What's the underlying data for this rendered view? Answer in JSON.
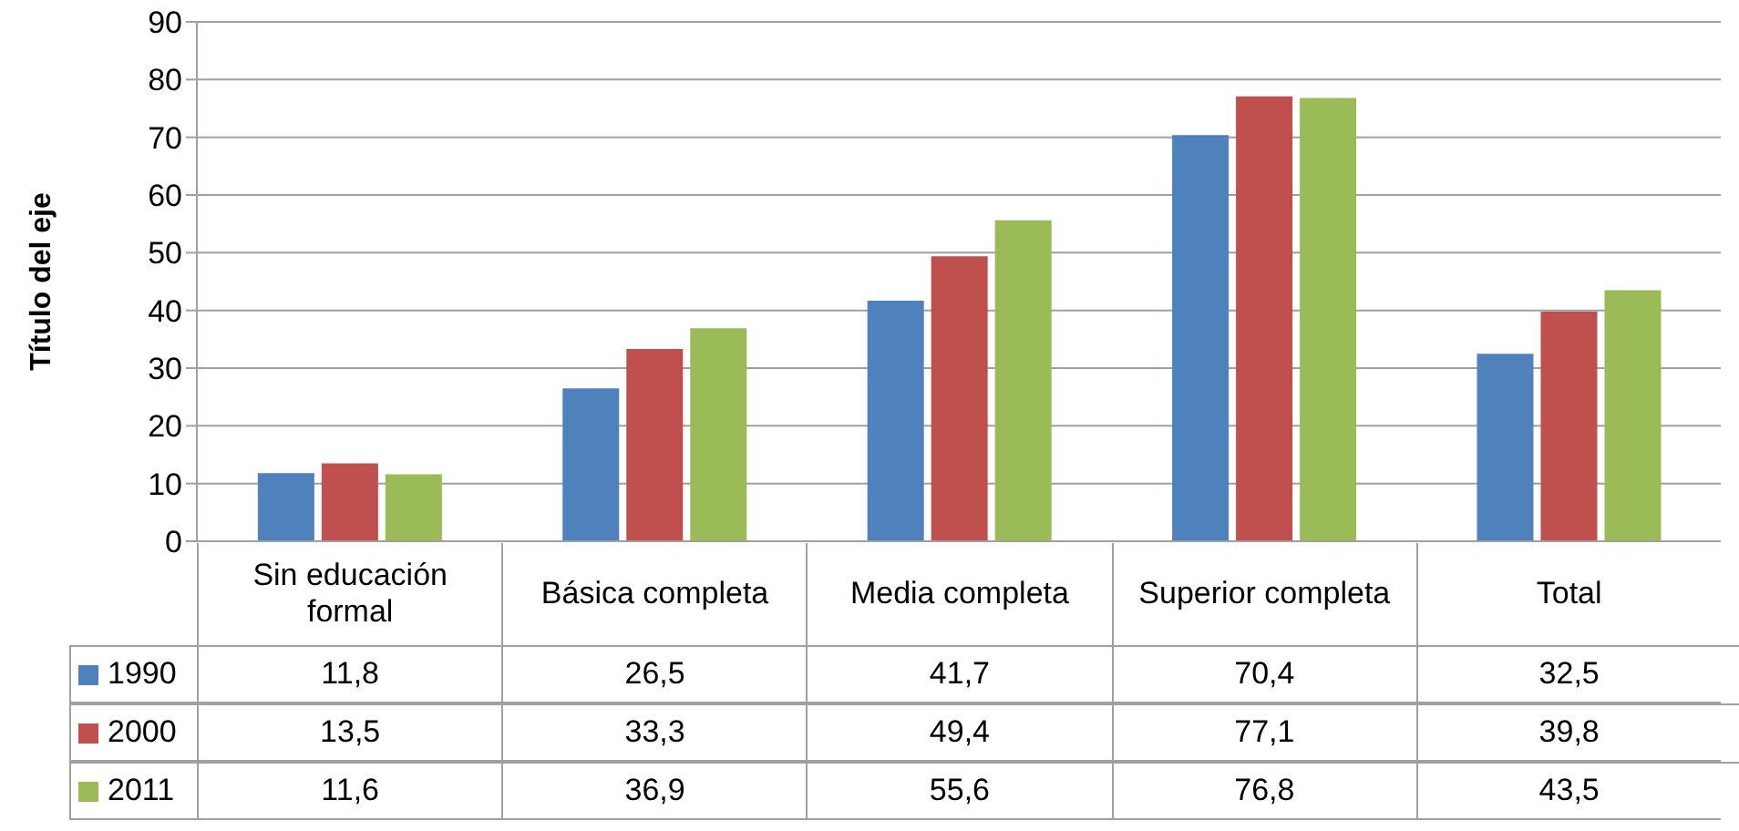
{
  "chart_data": {
    "type": "bar",
    "ylabel": "Título del eje",
    "categories": [
      "Sin educación formal",
      "Básica completa",
      "Media completa",
      "Superior completa",
      "Total"
    ],
    "series": [
      {
        "name": "1990",
        "color": "#4f81bd",
        "values": [
          11.8,
          26.5,
          41.7,
          70.4,
          32.5
        ],
        "value_labels": [
          "11,8",
          "26,5",
          "41,7",
          "70,4",
          "32,5"
        ]
      },
      {
        "name": "2000",
        "color": "#c0504d",
        "values": [
          13.5,
          33.3,
          49.4,
          77.1,
          39.8
        ],
        "value_labels": [
          "13,5",
          "33,3",
          "49,4",
          "77,1",
          "39,8"
        ]
      },
      {
        "name": "2011",
        "color": "#9bbb59",
        "values": [
          11.6,
          36.9,
          55.6,
          76.8,
          43.5
        ],
        "value_labels": [
          "11,6",
          "36,9",
          "55,6",
          "76,8",
          "43,5"
        ]
      }
    ],
    "ylim": [
      0,
      90
    ],
    "yticks": [
      0,
      10,
      20,
      30,
      40,
      50,
      60,
      70,
      80,
      90
    ],
    "grid": "y",
    "legend": "bottom"
  }
}
